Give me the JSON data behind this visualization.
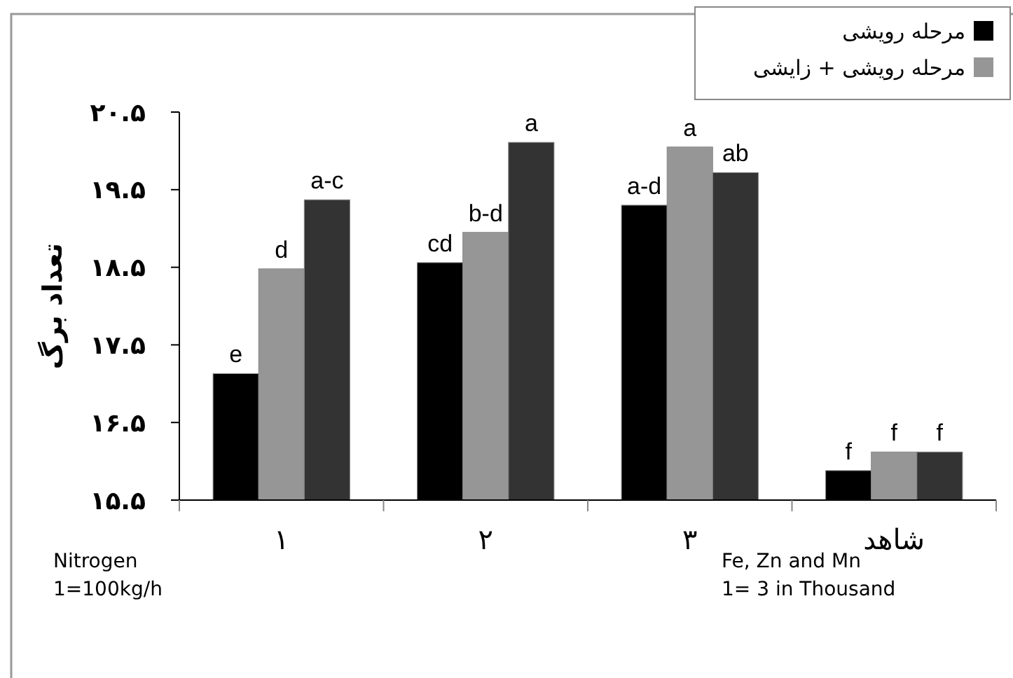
{
  "chart_data": {
    "type": "bar",
    "ylabel": "تعداد برگ",
    "categories": [
      "۱",
      "۲",
      "۳",
      "شاهد"
    ],
    "series": [
      {
        "name": "مرحله رویشی",
        "color": "#000000",
        "values": [
          17.13,
          18.56,
          19.3,
          15.88
        ],
        "value_labels": [
          "e",
          "cd",
          "a-d",
          "f"
        ]
      },
      {
        "name": "مرحله رویشی + زایشی",
        "color": "#969696",
        "values": [
          18.48,
          18.95,
          20.05,
          16.12
        ],
        "value_labels": [
          "d",
          "b-d",
          "a",
          "f"
        ]
      },
      {
        "color": "#333333",
        "values": [
          19.37,
          20.11,
          19.72,
          16.12
        ],
        "value_labels": [
          "a-c",
          "a",
          "ab",
          "f"
        ]
      }
    ],
    "ylim": [
      15.5,
      20.5
    ],
    "yticks": [
      {
        "value": 15.5,
        "label": "۱۵.۵"
      },
      {
        "value": 16.5,
        "label": "۱۶.۵"
      },
      {
        "value": 17.5,
        "label": "۱۷.۵"
      },
      {
        "value": 18.5,
        "label": "۱۸.۵"
      },
      {
        "value": 19.5,
        "label": "۱۹.۵"
      },
      {
        "value": 20.5,
        "label": "۲۰.۵"
      }
    ],
    "legend": "top right",
    "grid": false,
    "annotations": [
      "Nitrogen\n1=100kg/h",
      "Fe, Zn and Mn\n1= 3 in Thousand"
    ]
  }
}
